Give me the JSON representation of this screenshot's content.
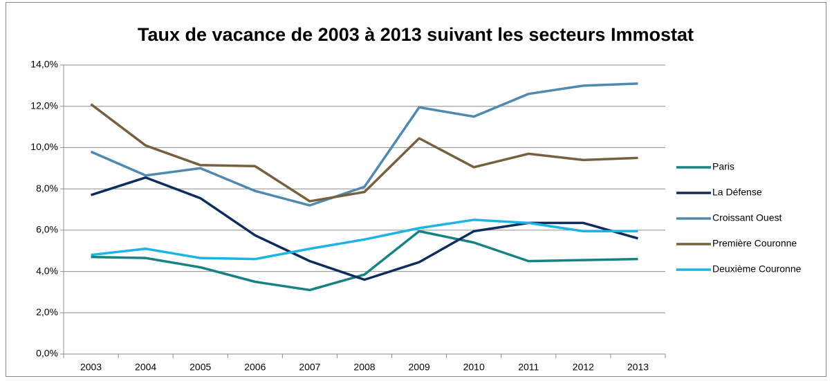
{
  "chart_data": {
    "type": "line",
    "title": "Taux de vacance de 2003 à 2013 suivant les secteurs Immostat",
    "categories": [
      "2003",
      "2004",
      "2005",
      "2006",
      "2007",
      "2008",
      "2009",
      "2010",
      "2011",
      "2012",
      "2013"
    ],
    "series": [
      {
        "name": "Paris",
        "color": "#168282",
        "values": [
          4.7,
          4.65,
          4.2,
          3.5,
          3.1,
          3.85,
          5.95,
          5.4,
          4.5,
          4.55,
          4.6
        ]
      },
      {
        "name": "La Défense",
        "color": "#0e2d5c",
        "values": [
          7.7,
          8.55,
          7.55,
          5.75,
          4.5,
          3.6,
          4.45,
          5.95,
          6.35,
          6.35,
          5.6
        ]
      },
      {
        "name": "Croissant Ouest",
        "color": "#4f8aae",
        "values": [
          9.8,
          8.65,
          9.0,
          7.9,
          7.2,
          8.1,
          11.95,
          11.5,
          12.6,
          13.0,
          13.1
        ]
      },
      {
        "name": "Première Couronne",
        "color": "#75613f",
        "values": [
          12.1,
          10.1,
          9.15,
          9.1,
          7.4,
          7.85,
          10.45,
          9.05,
          9.7,
          9.4,
          9.5
        ]
      },
      {
        "name": "Deuxième Couronne",
        "color": "#1cb3e6",
        "values": [
          4.8,
          5.1,
          4.65,
          4.6,
          5.1,
          5.55,
          6.1,
          6.5,
          6.35,
          5.95,
          5.95
        ]
      }
    ],
    "ylim": [
      0,
      14
    ],
    "yticks": [
      {
        "value": 0,
        "label": "0,0%"
      },
      {
        "value": 2,
        "label": "2,0%"
      },
      {
        "value": 4,
        "label": "4,0%"
      },
      {
        "value": 6,
        "label": "6,0%"
      },
      {
        "value": 8,
        "label": "8,0%"
      },
      {
        "value": 10,
        "label": "10,0%"
      },
      {
        "value": 12,
        "label": "12,0%"
      },
      {
        "value": 14,
        "label": "14,0%"
      }
    ],
    "grid": true,
    "legend": "right"
  }
}
